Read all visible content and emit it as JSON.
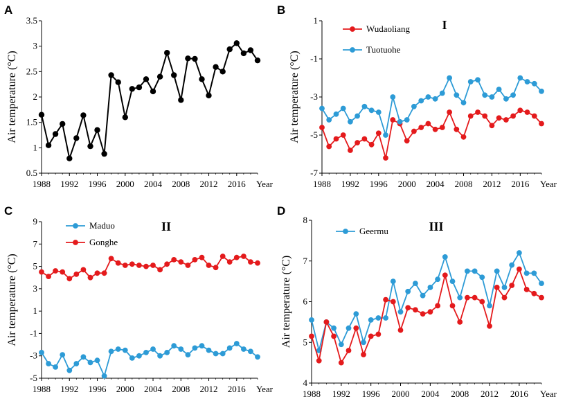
{
  "chart_data": [
    {
      "panel": "A",
      "type": "line",
      "title": "",
      "xlabel": "Year",
      "ylabel": "Air temperature (°C)",
      "xlim": [
        1988,
        2019
      ],
      "ylim": [
        0.5,
        3.5
      ],
      "yticks": [
        "0.5",
        "1",
        "1.5",
        "2",
        "2.5",
        "3",
        "3.5"
      ],
      "xticks": [
        "1988",
        "1992",
        "1996",
        "2000",
        "2004",
        "2008",
        "2012",
        "2016"
      ],
      "legend": [],
      "series": [
        {
          "name": "",
          "color": "#000000",
          "x": [
            1988,
            1989,
            1990,
            1991,
            1992,
            1993,
            1994,
            1995,
            1996,
            1997,
            1998,
            1999,
            2000,
            2001,
            2002,
            2003,
            2004,
            2005,
            2006,
            2007,
            2008,
            2009,
            2010,
            2011,
            2012,
            2013,
            2014,
            2015,
            2016,
            2017,
            2018,
            2019
          ],
          "values": [
            1.65,
            1.05,
            1.27,
            1.47,
            0.79,
            1.19,
            1.64,
            1.03,
            1.35,
            0.88,
            2.43,
            2.29,
            1.6,
            2.16,
            2.19,
            2.35,
            2.11,
            2.4,
            2.87,
            2.43,
            1.94,
            2.76,
            2.75,
            2.35,
            2.03,
            2.59,
            2.5,
            2.94,
            3.06,
            2.86,
            2.92,
            2.72
          ]
        }
      ]
    },
    {
      "panel": "B",
      "type": "line",
      "title": "I",
      "xlabel": "Year",
      "ylabel": "Air temperature (°C)",
      "xlim": [
        1988,
        2019
      ],
      "ylim": [
        -7,
        1
      ],
      "yticks": [
        "-7",
        "-5",
        "-3",
        "-1",
        "1"
      ],
      "xticks": [
        "1988",
        "1992",
        "1996",
        "2000",
        "2004",
        "2008",
        "2012",
        "2016"
      ],
      "legend": [
        "Wudaoliang",
        "Tuotuohe"
      ],
      "series": [
        {
          "name": "Wudaoliang",
          "color": "#e41a1c",
          "x": [
            1988,
            1989,
            1990,
            1991,
            1992,
            1993,
            1994,
            1995,
            1996,
            1997,
            1998,
            1999,
            2000,
            2001,
            2002,
            2003,
            2004,
            2005,
            2006,
            2007,
            2008,
            2009,
            2010,
            2011,
            2012,
            2013,
            2014,
            2015,
            2016,
            2017,
            2018,
            2019
          ],
          "values": [
            -4.6,
            -5.6,
            -5.2,
            -5.0,
            -5.8,
            -5.4,
            -5.2,
            -5.5,
            -4.9,
            -6.2,
            -4.2,
            -4.4,
            -5.3,
            -4.8,
            -4.6,
            -4.4,
            -4.7,
            -4.6,
            -3.8,
            -4.7,
            -5.1,
            -4.0,
            -3.8,
            -4.0,
            -4.5,
            -4.1,
            -4.2,
            -4.0,
            -3.7,
            -3.8,
            -4.0,
            -4.4
          ]
        },
        {
          "name": "Tuotuohe",
          "color": "#2d9bd6",
          "x": [
            1988,
            1989,
            1990,
            1991,
            1992,
            1993,
            1994,
            1995,
            1996,
            1997,
            1998,
            1999,
            2000,
            2001,
            2002,
            2003,
            2004,
            2005,
            2006,
            2007,
            2008,
            2009,
            2010,
            2011,
            2012,
            2013,
            2014,
            2015,
            2016,
            2017,
            2018,
            2019
          ],
          "values": [
            -3.6,
            -4.2,
            -3.9,
            -3.6,
            -4.3,
            -4.0,
            -3.5,
            -3.7,
            -3.8,
            -5.0,
            -3.0,
            -4.3,
            -4.2,
            -3.5,
            -3.2,
            -3.0,
            -3.1,
            -2.8,
            -2.0,
            -2.9,
            -3.3,
            -2.2,
            -2.1,
            -2.9,
            -3.0,
            -2.6,
            -3.1,
            -2.9,
            -2.0,
            -2.2,
            -2.3,
            -2.7
          ]
        }
      ]
    },
    {
      "panel": "C",
      "type": "line",
      "title": "II",
      "xlabel": "Year",
      "ylabel": "Air temperature (°C)",
      "xlim": [
        1988,
        2019
      ],
      "ylim": [
        -5,
        9
      ],
      "yticks": [
        "-5",
        "-3",
        "-1",
        "1",
        "3",
        "5",
        "7",
        "9"
      ],
      "xticks": [
        "1988",
        "1992",
        "1996",
        "2000",
        "2004",
        "2008",
        "2012",
        "2016"
      ],
      "legend": [
        "Maduo",
        "Gonghe"
      ],
      "series": [
        {
          "name": "Maduo",
          "color": "#2d9bd6",
          "x": [
            1988,
            1989,
            1990,
            1991,
            1992,
            1993,
            1994,
            1995,
            1996,
            1997,
            1998,
            1999,
            2000,
            2001,
            2002,
            2003,
            2004,
            2005,
            2006,
            2007,
            2008,
            2009,
            2010,
            2011,
            2012,
            2013,
            2014,
            2015,
            2016,
            2017,
            2018,
            2019
          ],
          "values": [
            -2.7,
            -3.7,
            -4.0,
            -2.9,
            -4.3,
            -3.7,
            -3.1,
            -3.6,
            -3.4,
            -4.8,
            -2.6,
            -2.4,
            -2.5,
            -3.2,
            -3.0,
            -2.7,
            -2.4,
            -3.0,
            -2.7,
            -2.1,
            -2.4,
            -2.9,
            -2.3,
            -2.1,
            -2.5,
            -2.8,
            -2.8,
            -2.3,
            -1.9,
            -2.4,
            -2.6,
            -3.1
          ]
        },
        {
          "name": "Gonghe",
          "color": "#e41a1c",
          "x": [
            1988,
            1989,
            1990,
            1991,
            1992,
            1993,
            1994,
            1995,
            1996,
            1997,
            1998,
            1999,
            2000,
            2001,
            2002,
            2003,
            2004,
            2005,
            2006,
            2007,
            2008,
            2009,
            2010,
            2011,
            2012,
            2013,
            2014,
            2015,
            2016,
            2017,
            2018,
            2019
          ],
          "values": [
            4.5,
            4.1,
            4.6,
            4.5,
            3.9,
            4.3,
            4.7,
            4.0,
            4.4,
            4.4,
            5.7,
            5.3,
            5.1,
            5.2,
            5.1,
            5.0,
            5.1,
            4.7,
            5.2,
            5.6,
            5.4,
            5.1,
            5.6,
            5.8,
            5.1,
            4.9,
            5.9,
            5.4,
            5.8,
            5.9,
            5.4,
            5.3
          ]
        }
      ]
    },
    {
      "panel": "D",
      "type": "line",
      "title": "III",
      "xlabel": "Year",
      "ylabel": "Air temperature (°C)",
      "xlim": [
        1988,
        2019
      ],
      "ylim": [
        4,
        8
      ],
      "yticks": [
        "4",
        "5",
        "6",
        "7",
        "8"
      ],
      "xticks": [
        "1988",
        "1992",
        "1996",
        "2000",
        "2004",
        "2008",
        "2012",
        "2016"
      ],
      "legend": [
        "Geermu"
      ],
      "series": [
        {
          "name": "Geermu",
          "color": "#2d9bd6",
          "x": [
            1988,
            1989,
            1990,
            1991,
            1992,
            1993,
            1994,
            1995,
            1996,
            1997,
            1998,
            1999,
            2000,
            2001,
            2002,
            2003,
            2004,
            2005,
            2006,
            2007,
            2008,
            2009,
            2010,
            2011,
            2012,
            2013,
            2014,
            2015,
            2016,
            2017,
            2018,
            2019
          ],
          "values": [
            5.55,
            4.8,
            5.5,
            5.35,
            4.95,
            5.35,
            5.7,
            5.0,
            5.55,
            5.6,
            5.6,
            6.5,
            5.75,
            6.25,
            6.45,
            6.15,
            6.35,
            6.55,
            7.1,
            6.5,
            6.1,
            6.75,
            6.75,
            6.6,
            5.9,
            6.75,
            6.35,
            6.9,
            7.2,
            6.7,
            6.7,
            6.45
          ]
        },
        {
          "name": "",
          "color": "#e41a1c",
          "x": [
            1988,
            1989,
            1990,
            1991,
            1992,
            1993,
            1994,
            1995,
            1996,
            1997,
            1998,
            1999,
            2000,
            2001,
            2002,
            2003,
            2004,
            2005,
            2006,
            2007,
            2008,
            2009,
            2010,
            2011,
            2012,
            2013,
            2014,
            2015,
            2016,
            2017,
            2018,
            2019
          ],
          "values": [
            5.15,
            4.55,
            5.5,
            5.15,
            4.5,
            4.8,
            5.35,
            4.7,
            5.15,
            5.2,
            6.05,
            6.0,
            5.3,
            5.85,
            5.8,
            5.7,
            5.75,
            5.9,
            6.65,
            5.9,
            5.5,
            6.1,
            6.1,
            6.0,
            5.4,
            6.35,
            6.1,
            6.4,
            6.8,
            6.3,
            6.2,
            6.1
          ]
        }
      ]
    }
  ]
}
